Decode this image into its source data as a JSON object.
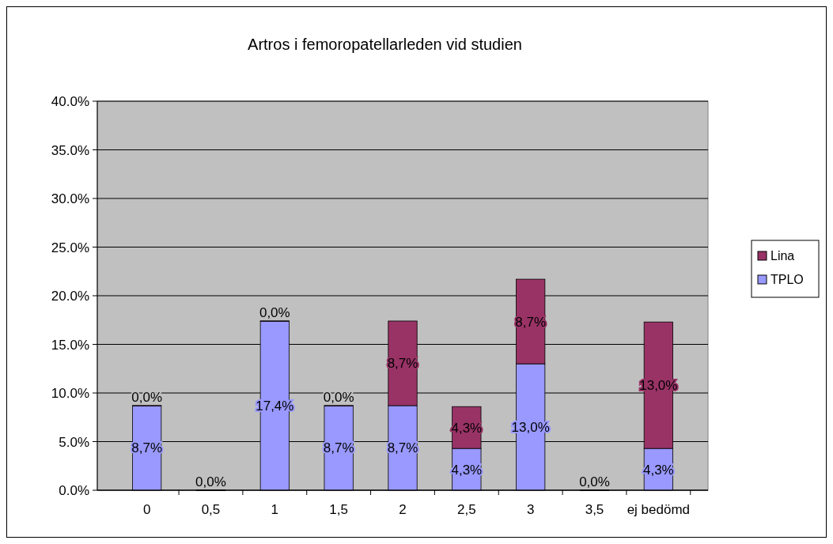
{
  "chart_data": {
    "type": "bar",
    "title": "Artros i femoropatellarleden vid studien",
    "categories": [
      "0",
      "0,5",
      "1",
      "1,5",
      "2",
      "2,5",
      "3",
      "3,5",
      "ej bedömd"
    ],
    "stacked": true,
    "series": [
      {
        "name": "TPLO",
        "color": "#9999ff",
        "values": [
          8.7,
          0.0,
          17.4,
          8.7,
          8.7,
          4.3,
          13.0,
          0.0,
          4.3
        ],
        "value_labels": [
          "8,7%",
          "0,0%",
          "17,4%",
          "8,7%",
          "8,7%",
          "4,3%",
          "13,0%",
          "0,0%",
          "4,3%"
        ]
      },
      {
        "name": "Lina",
        "color": "#993366",
        "values": [
          0.0,
          0.0,
          0.0,
          0.0,
          8.7,
          4.3,
          8.7,
          0.0,
          13.0
        ],
        "value_labels": [
          "0,0%",
          null,
          "0,0%",
          "0,0%",
          "8,7%",
          "4,3%",
          "8,7%",
          null,
          "13,0%"
        ]
      }
    ],
    "ylim": [
      0,
      40
    ],
    "yticks": [
      {
        "value": 0,
        "label": "0.0%"
      },
      {
        "value": 5,
        "label": "5.0%"
      },
      {
        "value": 10,
        "label": "10.0%"
      },
      {
        "value": 15,
        "label": "15.0%"
      },
      {
        "value": 20,
        "label": "20.0%"
      },
      {
        "value": 25,
        "label": "25.0%"
      },
      {
        "value": 30,
        "label": "30.0%"
      },
      {
        "value": 35,
        "label": "35.0%"
      },
      {
        "value": 40,
        "label": "40.0%"
      }
    ],
    "grid": "y",
    "legend": "right"
  }
}
